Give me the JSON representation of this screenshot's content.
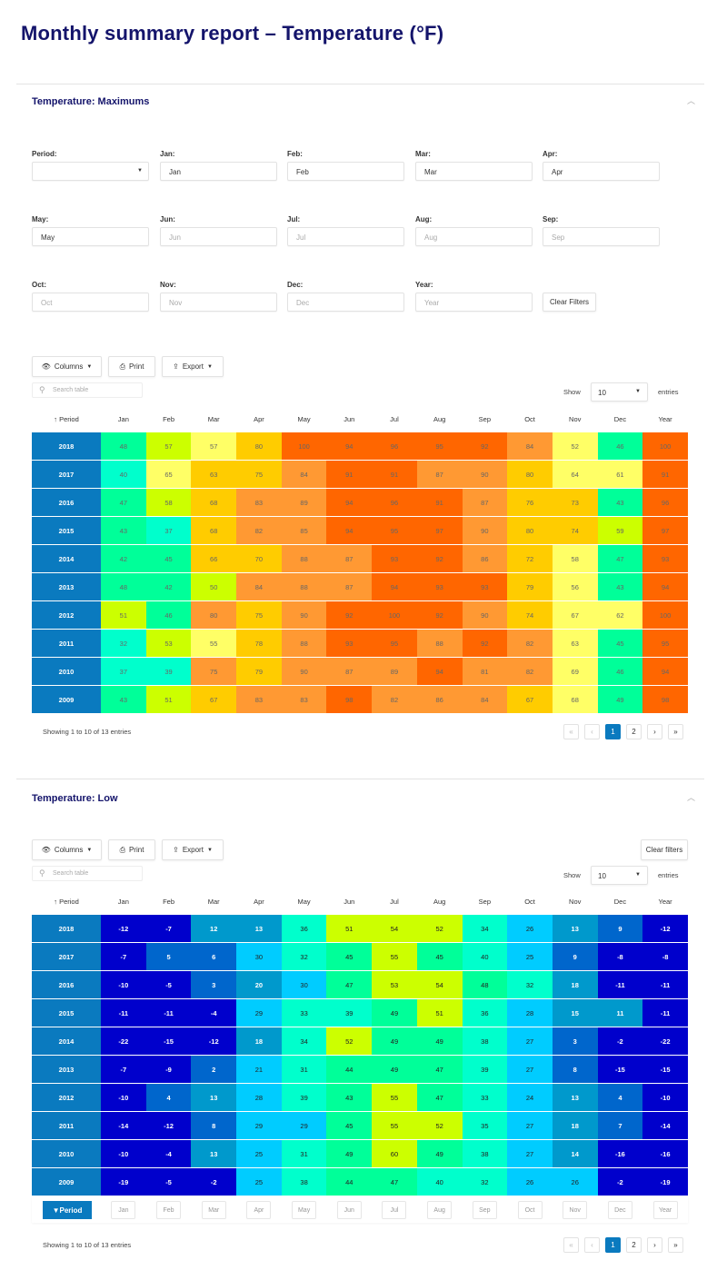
{
  "page_title": "Monthly summary report – Temperature (°F)",
  "columns": [
    "Period",
    "Jan",
    "Feb",
    "Mar",
    "Apr",
    "May",
    "Jun",
    "Jul",
    "Aug",
    "Sep",
    "Oct",
    "Nov",
    "Dec",
    "Year"
  ],
  "toolbar": {
    "columns": "Columns",
    "print": "Print",
    "export": "Export",
    "search_placeholder": "Search table",
    "show": "Show",
    "entries_value": "10",
    "entries": "entries",
    "clear_filters_low": "Clear filters"
  },
  "filters": {
    "clear_label": "Clear Filters",
    "fields": [
      {
        "label": "Period:",
        "value": "",
        "placeholder": ""
      },
      {
        "label": "Jan:",
        "value": "Jan"
      },
      {
        "label": "Feb:",
        "value": "Feb"
      },
      {
        "label": "Mar:",
        "value": "Mar"
      },
      {
        "label": "Apr:",
        "value": "Apr"
      },
      {
        "label": "May:",
        "value": "May"
      },
      {
        "label": "Jun:",
        "placeholder": "Jun"
      },
      {
        "label": "Jul:",
        "placeholder": "Jul"
      },
      {
        "label": "Aug:",
        "placeholder": "Aug"
      },
      {
        "label": "Sep:",
        "placeholder": "Sep"
      },
      {
        "label": "Oct:",
        "placeholder": "Oct"
      },
      {
        "label": "Nov:",
        "placeholder": "Nov"
      },
      {
        "label": "Dec:",
        "placeholder": "Dec"
      },
      {
        "label": "Year:",
        "placeholder": "Year"
      }
    ]
  },
  "pagination": {
    "info": "Showing 1 to 10 of 13 entries",
    "pages": [
      "1",
      "2"
    ],
    "current": "1"
  },
  "footer_filter": {
    "period": "Period",
    "placeholders": [
      "Jan",
      "Feb",
      "Mar",
      "Apr",
      "May",
      "Jun",
      "Jul",
      "Aug",
      "Sep",
      "Oct",
      "Nov",
      "Dec",
      "Year"
    ]
  },
  "max_table": {
    "title": "Temperature: Maximums",
    "palette": [
      "#00ff99",
      "#00ffcc",
      "#ccff00",
      "#ffff66",
      "#ffcc00",
      "#ff9933",
      "#ff6600"
    ],
    "text_color": "#666666",
    "rows": [
      {
        "period": "2018",
        "values": [
          48,
          57,
          57,
          80,
          100,
          94,
          96,
          95,
          92,
          84,
          52,
          46,
          100
        ],
        "levels": [
          0,
          2,
          3,
          4,
          6,
          6,
          6,
          6,
          6,
          5,
          3,
          0,
          6
        ]
      },
      {
        "period": "2017",
        "values": [
          40,
          65,
          63,
          75,
          84,
          91,
          91,
          87,
          90,
          80,
          64,
          61,
          91
        ],
        "levels": [
          1,
          3,
          4,
          4,
          5,
          6,
          6,
          5,
          5,
          4,
          3,
          3,
          6
        ]
      },
      {
        "period": "2016",
        "values": [
          47,
          58,
          68,
          83,
          89,
          94,
          96,
          91,
          87,
          76,
          73,
          43,
          96
        ],
        "levels": [
          0,
          2,
          4,
          5,
          5,
          6,
          6,
          6,
          5,
          4,
          4,
          0,
          6
        ]
      },
      {
        "period": "2015",
        "values": [
          43,
          37,
          68,
          82,
          85,
          94,
          95,
          97,
          90,
          80,
          74,
          59,
          97
        ],
        "levels": [
          0,
          1,
          4,
          5,
          5,
          6,
          6,
          6,
          5,
          4,
          4,
          2,
          6
        ]
      },
      {
        "period": "2014",
        "values": [
          42,
          45,
          66,
          70,
          88,
          87,
          93,
          92,
          86,
          72,
          58,
          47,
          93
        ],
        "levels": [
          0,
          0,
          4,
          4,
          5,
          5,
          6,
          6,
          5,
          4,
          3,
          0,
          6
        ]
      },
      {
        "period": "2013",
        "values": [
          48,
          42,
          50,
          84,
          88,
          87,
          94,
          93,
          93,
          79,
          56,
          43,
          94
        ],
        "levels": [
          0,
          0,
          2,
          5,
          5,
          5,
          6,
          6,
          6,
          4,
          3,
          0,
          6
        ]
      },
      {
        "period": "2012",
        "values": [
          51,
          46,
          80,
          75,
          90,
          92,
          100,
          92,
          90,
          74,
          67,
          62,
          100
        ],
        "levels": [
          2,
          0,
          5,
          4,
          5,
          6,
          6,
          6,
          5,
          4,
          3,
          3,
          6
        ]
      },
      {
        "period": "2011",
        "values": [
          32,
          53,
          55,
          78,
          88,
          93,
          95,
          88,
          92,
          82,
          63,
          45,
          95
        ],
        "levels": [
          1,
          2,
          3,
          4,
          5,
          6,
          6,
          5,
          6,
          5,
          3,
          0,
          6
        ]
      },
      {
        "period": "2010",
        "values": [
          37,
          39,
          75,
          79,
          90,
          87,
          89,
          94,
          81,
          82,
          69,
          46,
          94
        ],
        "levels": [
          1,
          1,
          5,
          4,
          5,
          5,
          5,
          6,
          5,
          5,
          3,
          0,
          6
        ]
      },
      {
        "period": "2009",
        "values": [
          43,
          51,
          67,
          83,
          83,
          98,
          82,
          86,
          84,
          67,
          68,
          49,
          98
        ],
        "levels": [
          0,
          2,
          4,
          5,
          5,
          6,
          5,
          5,
          5,
          4,
          3,
          0,
          6
        ]
      }
    ]
  },
  "low_table": {
    "title": "Temperature: Low",
    "palette": [
      "#0000cc",
      "#0066cc",
      "#0099cc",
      "#00ccff",
      "#00ffcc",
      "#00ff99",
      "#ccff00"
    ],
    "rows": [
      {
        "period": "2018",
        "values": [
          -12,
          -7,
          12,
          13,
          36,
          51,
          54,
          52,
          34,
          26,
          13,
          9,
          -12
        ],
        "levels": [
          0,
          0,
          2,
          2,
          4,
          6,
          6,
          6,
          4,
          3,
          2,
          1,
          0
        ]
      },
      {
        "period": "2017",
        "values": [
          -7,
          5,
          6,
          30,
          32,
          45,
          55,
          45,
          40,
          25,
          9,
          -8,
          -8
        ],
        "levels": [
          0,
          1,
          1,
          3,
          4,
          5,
          6,
          5,
          4,
          3,
          1,
          0,
          0
        ]
      },
      {
        "period": "2016",
        "values": [
          -10,
          -5,
          3,
          20,
          30,
          47,
          53,
          54,
          48,
          32,
          18,
          -11,
          -11
        ],
        "levels": [
          0,
          0,
          1,
          2,
          3,
          5,
          6,
          6,
          5,
          4,
          2,
          0,
          0
        ]
      },
      {
        "period": "2015",
        "values": [
          -11,
          -11,
          -4,
          29,
          33,
          39,
          49,
          51,
          36,
          28,
          15,
          11,
          -11
        ],
        "levels": [
          0,
          0,
          0,
          3,
          4,
          4,
          5,
          6,
          4,
          3,
          2,
          2,
          0
        ]
      },
      {
        "period": "2014",
        "values": [
          -22,
          -15,
          -12,
          18,
          34,
          52,
          49,
          49,
          38,
          27,
          3,
          -2,
          -22
        ],
        "levels": [
          0,
          0,
          0,
          2,
          4,
          6,
          5,
          5,
          4,
          3,
          1,
          0,
          0
        ]
      },
      {
        "period": "2013",
        "values": [
          -7,
          -9,
          2,
          21,
          31,
          44,
          49,
          47,
          39,
          27,
          8,
          -15,
          -15
        ],
        "levels": [
          0,
          0,
          1,
          3,
          4,
          5,
          5,
          5,
          4,
          3,
          1,
          0,
          0
        ]
      },
      {
        "period": "2012",
        "values": [
          -10,
          4,
          13,
          28,
          39,
          43,
          55,
          47,
          33,
          24,
          13,
          4,
          -10
        ],
        "levels": [
          0,
          1,
          2,
          3,
          4,
          5,
          6,
          5,
          4,
          3,
          2,
          1,
          0
        ]
      },
      {
        "period": "2011",
        "values": [
          -14,
          -12,
          8,
          29,
          29,
          45,
          55,
          52,
          35,
          27,
          18,
          7,
          -14
        ],
        "levels": [
          0,
          0,
          1,
          3,
          3,
          5,
          6,
          6,
          4,
          3,
          2,
          1,
          0
        ]
      },
      {
        "period": "2010",
        "values": [
          -10,
          -4,
          13,
          25,
          31,
          49,
          60,
          49,
          38,
          27,
          14,
          -16,
          -16
        ],
        "levels": [
          0,
          0,
          2,
          3,
          4,
          5,
          6,
          5,
          4,
          3,
          2,
          0,
          0
        ]
      },
      {
        "period": "2009",
        "values": [
          -19,
          -5,
          -2,
          25,
          38,
          44,
          47,
          40,
          32,
          26,
          26,
          -2,
          -19
        ],
        "levels": [
          0,
          0,
          0,
          3,
          4,
          5,
          5,
          4,
          4,
          3,
          3,
          0,
          0
        ]
      }
    ]
  }
}
